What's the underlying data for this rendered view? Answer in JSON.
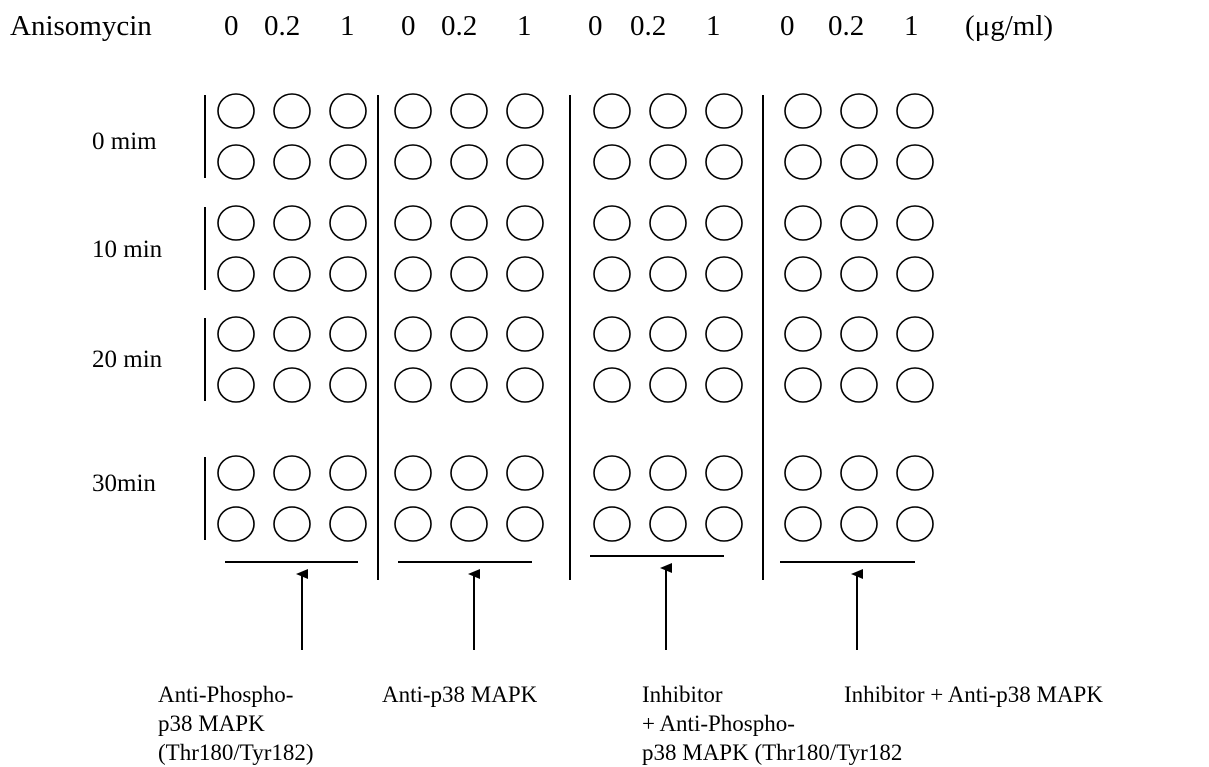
{
  "header": {
    "label": "Anisomycin",
    "doses": [
      "0",
      "0.2",
      "1",
      "0",
      "0.2",
      "1",
      "0",
      "0.2",
      "1",
      "0",
      "0.2",
      "1"
    ],
    "unit": "(μg/ml)"
  },
  "time_points": [
    "0 mim",
    "10 min",
    "20 min",
    "30min"
  ],
  "groups": [
    {
      "caption": [
        "Anti-Phospho-",
        "p38 MAPK",
        "(Thr180/Tyr182)"
      ]
    },
    {
      "caption": [
        "Anti-p38 MAPK"
      ]
    },
    {
      "caption": [
        "Inhibitor",
        "+ Anti-Phospho-",
        " p38 MAPK (Thr180/Tyr182"
      ]
    },
    {
      "caption": [
        "Inhibitor + Anti-p38 MAPK"
      ]
    }
  ]
}
